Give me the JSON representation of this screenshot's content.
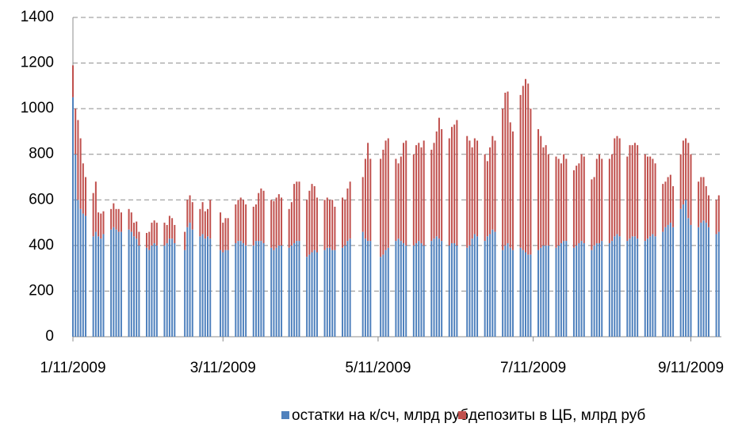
{
  "chart_data": {
    "type": "stacked-bar",
    "x": [
      "2009-01-11",
      "2009-01-12",
      "2009-01-13",
      "2009-01-14",
      "2009-01-15",
      "2009-01-16",
      "2009-01-19",
      "2009-01-20",
      "2009-01-21",
      "2009-01-22",
      "2009-01-23",
      "2009-01-26",
      "2009-01-27",
      "2009-01-28",
      "2009-01-29",
      "2009-01-30",
      "2009-02-02",
      "2009-02-03",
      "2009-02-04",
      "2009-02-05",
      "2009-02-06",
      "2009-02-09",
      "2009-02-10",
      "2009-02-11",
      "2009-02-12",
      "2009-02-13",
      "2009-02-16",
      "2009-02-17",
      "2009-02-18",
      "2009-02-19",
      "2009-02-20",
      "2009-02-24",
      "2009-02-25",
      "2009-02-26",
      "2009-02-27",
      "2009-03-02",
      "2009-03-03",
      "2009-03-04",
      "2009-03-05",
      "2009-03-06",
      "2009-03-10",
      "2009-03-11",
      "2009-03-12",
      "2009-03-13",
      "2009-03-16",
      "2009-03-17",
      "2009-03-18",
      "2009-03-19",
      "2009-03-20",
      "2009-03-23",
      "2009-03-24",
      "2009-03-25",
      "2009-03-26",
      "2009-03-27",
      "2009-03-30",
      "2009-03-31",
      "2009-04-01",
      "2009-04-02",
      "2009-04-03",
      "2009-04-06",
      "2009-04-07",
      "2009-04-08",
      "2009-04-09",
      "2009-04-10",
      "2009-04-13",
      "2009-04-14",
      "2009-04-15",
      "2009-04-16",
      "2009-04-17",
      "2009-04-20",
      "2009-04-21",
      "2009-04-22",
      "2009-04-23",
      "2009-04-24",
      "2009-04-27",
      "2009-04-28",
      "2009-04-29",
      "2009-04-30",
      "2009-05-05",
      "2009-05-06",
      "2009-05-07",
      "2009-05-08",
      "2009-05-12",
      "2009-05-13",
      "2009-05-14",
      "2009-05-15",
      "2009-05-18",
      "2009-05-19",
      "2009-05-20",
      "2009-05-21",
      "2009-05-22",
      "2009-05-25",
      "2009-05-26",
      "2009-05-27",
      "2009-05-28",
      "2009-05-29",
      "2009-06-01",
      "2009-06-02",
      "2009-06-03",
      "2009-06-04",
      "2009-06-05",
      "2009-06-08",
      "2009-06-09",
      "2009-06-10",
      "2009-06-11",
      "2009-06-15",
      "2009-06-16",
      "2009-06-17",
      "2009-06-18",
      "2009-06-19",
      "2009-06-22",
      "2009-06-23",
      "2009-06-24",
      "2009-06-25",
      "2009-06-26",
      "2009-06-29",
      "2009-06-30",
      "2009-07-01",
      "2009-07-02",
      "2009-07-03",
      "2009-07-06",
      "2009-07-07",
      "2009-07-08",
      "2009-07-09",
      "2009-07-10",
      "2009-07-13",
      "2009-07-14",
      "2009-07-15",
      "2009-07-16",
      "2009-07-17",
      "2009-07-20",
      "2009-07-21",
      "2009-07-22",
      "2009-07-23",
      "2009-07-24",
      "2009-07-27",
      "2009-07-28",
      "2009-07-29",
      "2009-07-30",
      "2009-07-31",
      "2009-08-03",
      "2009-08-04",
      "2009-08-05",
      "2009-08-06",
      "2009-08-07",
      "2009-08-10",
      "2009-08-11",
      "2009-08-12",
      "2009-08-13",
      "2009-08-14",
      "2009-08-17",
      "2009-08-18",
      "2009-08-19",
      "2009-08-20",
      "2009-08-21",
      "2009-08-24",
      "2009-08-25",
      "2009-08-26",
      "2009-08-27",
      "2009-08-28",
      "2009-08-31",
      "2009-09-01",
      "2009-09-02",
      "2009-09-03",
      "2009-09-04",
      "2009-09-07",
      "2009-09-08",
      "2009-09-09",
      "2009-09-10",
      "2009-09-11",
      "2009-09-14",
      "2009-09-15",
      "2009-09-16",
      "2009-09-17",
      "2009-09-18",
      "2009-09-21",
      "2009-09-22"
    ],
    "series": [
      {
        "name": "остатки на к/сч, млрд руб",
        "color": "#4f81bd",
        "values": [
          1050,
          800,
          600,
          560,
          540,
          530,
          440,
          460,
          440,
          430,
          450,
          470,
          480,
          470,
          460,
          460,
          470,
          460,
          440,
          430,
          400,
          390,
          380,
          400,
          410,
          400,
          400,
          410,
          430,
          430,
          410,
          380,
          480,
          500,
          470,
          440,
          450,
          430,
          440,
          430,
          380,
          370,
          380,
          380,
          410,
          420,
          420,
          410,
          400,
          400,
          420,
          420,
          420,
          410,
          390,
          380,
          390,
          400,
          400,
          390,
          400,
          410,
          420,
          420,
          350,
          360,
          370,
          380,
          370,
          380,
          390,
          390,
          380,
          380,
          390,
          400,
          420,
          430,
          460,
          430,
          420,
          420,
          350,
          360,
          380,
          390,
          420,
          430,
          420,
          410,
          400,
          400,
          410,
          420,
          410,
          400,
          420,
          430,
          440,
          430,
          420,
          400,
          410,
          410,
          400,
          390,
          400,
          430,
          450,
          440,
          420,
          440,
          450,
          470,
          460,
          380,
          400,
          410,
          390,
          380,
          390,
          380,
          370,
          360,
          360,
          380,
          390,
          400,
          400,
          400,
          390,
          400,
          410,
          420,
          420,
          390,
          400,
          410,
          420,
          410,
          380,
          400,
          410,
          410,
          420,
          410,
          420,
          440,
          450,
          440,
          420,
          430,
          440,
          440,
          430,
          420,
          430,
          440,
          450,
          440,
          460,
          480,
          490,
          500,
          480,
          560,
          580,
          600,
          520,
          490,
          480,
          500,
          510,
          500,
          480,
          450,
          460
        ]
      },
      {
        "name": "депозиты в ЦБ, млрд руб",
        "color": "#c0504d",
        "values": [
          140,
          200,
          350,
          310,
          220,
          170,
          190,
          220,
          105,
          110,
          100,
          90,
          105,
          90,
          100,
          85,
          90,
          85,
          60,
          75,
          60,
          65,
          80,
          100,
          100,
          100,
          100,
          80,
          100,
          90,
          80,
          80,
          120,
          120,
          120,
          120,
          140,
          120,
          120,
          170,
          165,
          130,
          140,
          140,
          170,
          180,
          190,
          190,
          180,
          170,
          160,
          210,
          230,
          230,
          210,
          215,
          220,
          225,
          210,
          170,
          190,
          260,
          260,
          260,
          250,
          280,
          300,
          280,
          240,
          220,
          220,
          210,
          220,
          190,
          220,
          200,
          230,
          250,
          240,
          350,
          430,
          360,
          430,
          460,
          480,
          480,
          360,
          330,
          370,
          440,
          460,
          400,
          430,
          430,
          420,
          460,
          400,
          420,
          460,
          530,
          490,
          470,
          510,
          520,
          550,
          490,
          460,
          400,
          420,
          420,
          380,
          330,
          380,
          410,
          400,
          620,
          670,
          665,
          550,
          520,
          670,
          720,
          760,
          750,
          640,
          530,
          490,
          430,
          440,
          400,
          400,
          380,
          350,
          380,
          360,
          340,
          350,
          350,
          380,
          380,
          310,
          300,
          370,
          390,
          360,
          370,
          380,
          430,
          430,
          430,
          370,
          410,
          400,
          410,
          410,
          380,
          360,
          350,
          330,
          320,
          210,
          200,
          210,
          210,
          180,
          240,
          280,
          270,
          330,
          310,
          200,
          200,
          190,
          160,
          140,
          150,
          160
        ]
      }
    ],
    "xlim": [
      "2009-01-11",
      "2009-09-23"
    ],
    "xticks": [
      {
        "value": "2009-01-11",
        "label": "1/11/2009"
      },
      {
        "value": "2009-03-11",
        "label": "3/11/2009"
      },
      {
        "value": "2009-05-11",
        "label": "5/11/2009"
      },
      {
        "value": "2009-07-11",
        "label": "7/11/2009"
      },
      {
        "value": "2009-09-11",
        "label": "9/11/2009"
      }
    ],
    "ylim": [
      0,
      1400
    ],
    "yticks": [
      0,
      200,
      400,
      600,
      800,
      1000,
      1200,
      1400
    ],
    "grid": true,
    "legend": "bottom"
  }
}
